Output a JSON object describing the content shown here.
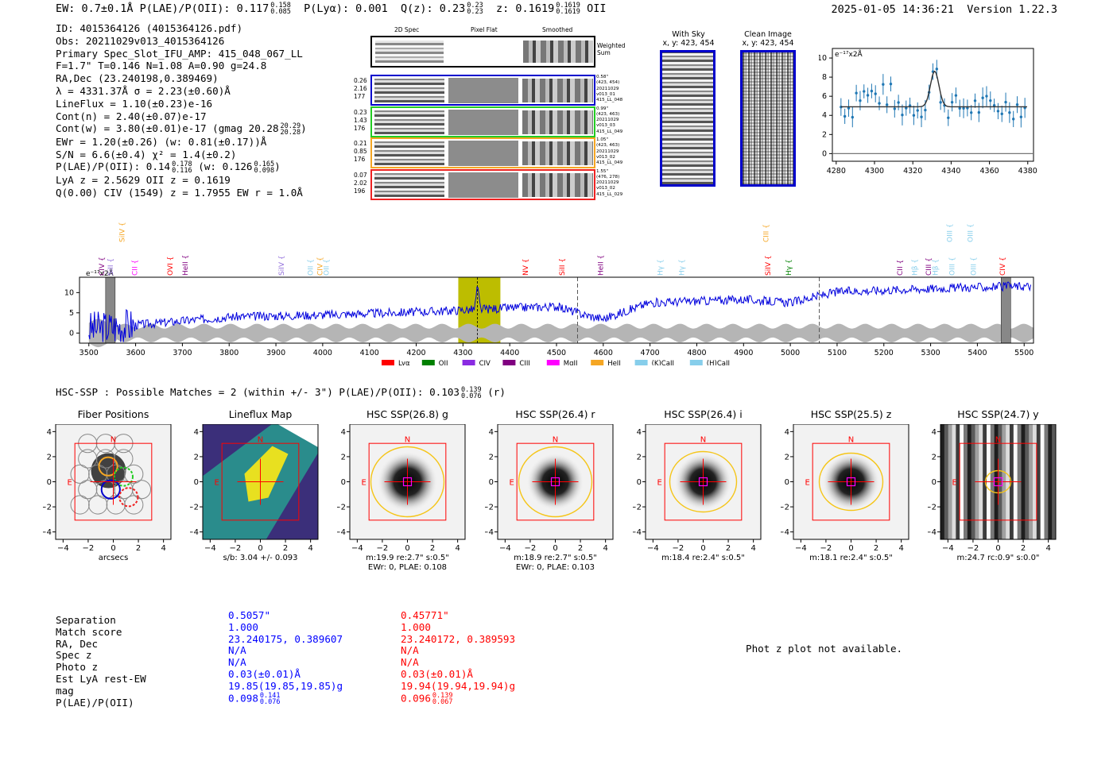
{
  "header": {
    "line": "EW: 0.7±0.1Å  P(LAE)/P(OII): 0.117",
    "plae_up": "0.158",
    "plae_lo": "0.085",
    "plya": "P(Lyα): 0.001",
    "qz": "Q(z): 0.23",
    "qz_up": "0.23",
    "qz_lo": "0.23",
    "z": "z: 0.1619",
    "z_up": "0.1619",
    "z_lo": "0.1619",
    "oii": "OII",
    "timestamp": "2025-01-05 14:36:21",
    "version": "Version 1.22.3"
  },
  "info": {
    "id": "ID: 4015364126 (4015364126.pdf)",
    "obs": "Obs: 20211029v013_4015364126",
    "primary": "Primary Spec_Slot_IFU_AMP: 415_048_067_LL",
    "fwhm": "F=1.7\"  T=0.146  N=1.08  A=0.90  g=24.8",
    "radec": "RA,Dec (23.240198,0.389469)",
    "lambda": "λ = 4331.37Å  σ = 2.23(±0.60)Å",
    "lineflux": "LineFlux = 1.10(±0.23)e-16",
    "contn": "Cont(n) = 2.40(±0.07)e-17",
    "contw": "Cont(w) = 3.80(±0.01)e-17 (gmag 20.28",
    "gmag_up": "20.29",
    "gmag_lo": "20.28",
    "ewr": "EWr = 1.20(±0.26) (w: 0.81(±0.17))Å",
    "sn": "S/N = 6.6(±0.4)  χ² = 1.4(±0.2)",
    "plae": "P(LAE)/P(OII): 0.14",
    "plae_up": "0.178",
    "plae_lo": "0.116",
    "plae_w": "(w: 0.126",
    "plae_w_up": "0.165",
    "plae_w_lo": "0.098",
    "lya": "LyA z = 2.5629  OII z = 0.1619",
    "q": "Q(0.00) CIV (1549) z = 1.7955  EW r = 1.0Å"
  },
  "cutouts": {
    "col_2d": "2D Spec",
    "col_flat": "Pixel Flat",
    "col_smooth": "Smoothed",
    "weighted": "Weighted Sum",
    "rows": [
      {
        "a": "0.26",
        "b": "2.16",
        "c": "177",
        "d1": "0.58\"",
        "d2": "(423, 454)",
        "d3": "20211029",
        "d4": "v013_01",
        "d5": "415_LL_048",
        "color": "#0000cc"
      },
      {
        "a": "0.23",
        "b": "1.43",
        "c": "176",
        "d1": "0.99\"",
        "d2": "(423, 463)",
        "d3": "20211029",
        "d4": "v013_03",
        "d5": "415_LL_049",
        "color": "#22cc22"
      },
      {
        "a": "0.21",
        "b": "0.85",
        "c": "176",
        "d1": "1.05\"",
        "d2": "(423, 463)",
        "d3": "20211029",
        "d4": "v013_02",
        "d5": "415_LL_049",
        "color": "#f5a623"
      },
      {
        "a": "0.07",
        "b": "2.02",
        "c": "196",
        "d1": "1.55\"",
        "d2": "(476, 278)",
        "d3": "20211029",
        "d4": "v013_02",
        "d5": "415_LL_029",
        "color": "#ee2222"
      }
    ]
  },
  "sky": {
    "with_sky": "With Sky",
    "clean": "Clean Image",
    "xy": "x, y: 423, 454"
  },
  "zoom_chart": {
    "type": "line",
    "unit_label": "e⁻¹⁷x2Å",
    "xlim": [
      4278,
      4383
    ],
    "ylim": [
      -0.8,
      11
    ],
    "xticks": [
      4280,
      4300,
      4320,
      4340,
      4360,
      4380
    ],
    "yticks": [
      0,
      2,
      4,
      6,
      8,
      10
    ],
    "fit_base": 4.9,
    "fit_center": 4331.4,
    "fit_sigma": 2.23,
    "fit_amp": 3.7
  },
  "full_spectrum": {
    "type": "line",
    "unit_label": "e⁻¹⁷x2Å",
    "xlim": [
      3480,
      5520
    ],
    "ylim": [
      -2.5,
      13.8
    ],
    "xticks": [
      3500,
      3600,
      3700,
      3800,
      3900,
      4000,
      4100,
      4200,
      4300,
      4400,
      4500,
      4600,
      4700,
      4800,
      4900,
      5000,
      5100,
      5200,
      5300,
      5400,
      5500
    ],
    "yticks": [
      0,
      5,
      10
    ],
    "highlight": [
      4290,
      4380
    ],
    "peak": 4331,
    "dashed": [
      4545,
      5062
    ],
    "skylines": [
      3546,
      5461
    ],
    "trend": [
      [
        3500,
        1
      ],
      [
        3600,
        2
      ],
      [
        3800,
        4
      ],
      [
        4000,
        4.5
      ],
      [
        4200,
        5.2
      ],
      [
        4400,
        6.2
      ],
      [
        4500,
        6.6
      ],
      [
        4560,
        4.5
      ],
      [
        4600,
        3.5
      ],
      [
        4700,
        7.5
      ],
      [
        4900,
        8.3
      ],
      [
        5000,
        7.5
      ],
      [
        5100,
        10.2
      ],
      [
        5300,
        11
      ],
      [
        5500,
        11.6
      ]
    ],
    "lines_row1": [
      {
        "n": "SiIV",
        "x": 3571,
        "c": "#f5a623"
      },
      {
        "n": "CIII",
        "x": 4948,
        "c": "#f5a623"
      },
      {
        "n": "OIII",
        "x": 5341,
        "c": "#87ceeb"
      },
      {
        "n": "OIII",
        "x": 5385,
        "c": "#87ceeb"
      }
    ],
    "lines_row2": [
      {
        "n": "CIV",
        "x": 3528,
        "c": "#800080"
      },
      {
        "n": "SiII",
        "x": 3546,
        "c": "#9370db"
      },
      {
        "n": "CII",
        "x": 3598,
        "c": "#ff00ff"
      },
      {
        "n": "OVI",
        "x": 3674,
        "c": "#ff0000"
      },
      {
        "n": "HeII",
        "x": 3706,
        "c": "#800080"
      },
      {
        "n": "SiIV",
        "x": 3912,
        "c": "#9370db"
      },
      {
        "n": "OII",
        "x": 3974,
        "c": "#87ceeb"
      },
      {
        "n": "CIV",
        "x": 3994,
        "c": "#f5a623"
      },
      {
        "n": "OII",
        "x": 4008,
        "c": "#87ceeb"
      },
      {
        "n": "NV",
        "x": 4434,
        "c": "#ff0000"
      },
      {
        "n": "SiII",
        "x": 4512,
        "c": "#ff0000"
      },
      {
        "n": "HeII",
        "x": 4594,
        "c": "#800080"
      },
      {
        "n": "Hγ",
        "x": 4722,
        "c": "#87ceeb"
      },
      {
        "n": "Hγ",
        "x": 4768,
        "c": "#87ceeb"
      },
      {
        "n": "SiIV",
        "x": 4952,
        "c": "#ff0000"
      },
      {
        "n": "Hγ",
        "x": 4996,
        "c": "#008000"
      },
      {
        "n": "CII",
        "x": 5234,
        "c": "#800080"
      },
      {
        "n": "Hβ",
        "x": 5266,
        "c": "#87ceeb"
      },
      {
        "n": "CIII",
        "x": 5296,
        "c": "#800080"
      },
      {
        "n": "Hβ",
        "x": 5310,
        "c": "#87ceeb"
      },
      {
        "n": "OIII",
        "x": 5346,
        "c": "#87ceeb"
      },
      {
        "n": "OIII",
        "x": 5392,
        "c": "#87ceeb"
      },
      {
        "n": "CIV",
        "x": 5454,
        "c": "#ff0000"
      }
    ],
    "legend": [
      {
        "n": "Lyα",
        "c": "#ff0000"
      },
      {
        "n": "OII",
        "c": "#008000"
      },
      {
        "n": "CIV",
        "c": "#8a2be2"
      },
      {
        "n": "CIII",
        "c": "#800080"
      },
      {
        "n": "MgII",
        "c": "#ff00ff"
      },
      {
        "n": "HeII",
        "c": "#f5a623"
      },
      {
        "n": "(K)CaII",
        "c": "#87ceeb"
      },
      {
        "n": "(H)CaII",
        "c": "#87ceeb"
      }
    ]
  },
  "hsc": {
    "title": "HSC-SSP : Possible Matches = 2 (within +/- 3\")  P(LAE)/P(OII): 0.103",
    "up": "0.139",
    "lo": "0.076",
    "suffix": "(r)",
    "north": "N",
    "east": "E",
    "ticks": [
      "−4",
      "−2",
      "0",
      "2",
      "4"
    ],
    "yticks": [
      "4",
      "2",
      "0",
      "−2",
      "−4"
    ],
    "panels": [
      {
        "title": "Fiber Positions",
        "cap1": "arcsecs",
        "cap2": ""
      },
      {
        "title": "Lineflux Map",
        "cap1": "s/b: 3.04 +/- 0.093",
        "cap2": ""
      },
      {
        "title": "HSC SSP(26.8) g",
        "cap1": "m:19.9  re:2.7\"  s:0.5\"",
        "cap2": "EWr: 0, PLAE: 0.108"
      },
      {
        "title": "HSC SSP(26.4) r",
        "cap1": "m:18.9  re:2.7\"  s:0.5\"",
        "cap2": "EWr: 0, PLAE: 0.103"
      },
      {
        "title": "HSC SSP(26.4) i",
        "cap1": "m:18.4  re:2.4\"  s:0.5\"",
        "cap2": ""
      },
      {
        "title": "HSC SSP(25.5) z",
        "cap1": "m:18.1  re:2.4\"  s:0.5\"",
        "cap2": ""
      },
      {
        "title": "HSC SSP(24.7) y",
        "cap1": "m:24.7  rc:0.9\"  s:0.0\"",
        "cap2": ""
      }
    ]
  },
  "matches": {
    "labels": [
      "Separation",
      "Match score",
      "RA, Dec",
      "Spec z",
      "Photo z",
      "Est LyA rest-EW",
      "mag",
      "P(LAE)/P(OII)"
    ],
    "col1": [
      "0.5057\"",
      "1.000",
      "23.240175, 0.389607",
      "N/A",
      "N/A",
      "0.03(±0.01)Å",
      "19.85(19.85,19.85)g",
      "0.098"
    ],
    "col1_up": "0.141",
    "col1_lo": "0.076",
    "col2": [
      "0.45771\"",
      "1.000",
      "23.240172, 0.389593",
      "N/A",
      "N/A",
      "0.03(±0.01)Å",
      "19.94(19.94,19.94)g",
      "0.096"
    ],
    "col2_up": "0.139",
    "col2_lo": "0.067",
    "photz": "Phot z plot not available."
  }
}
